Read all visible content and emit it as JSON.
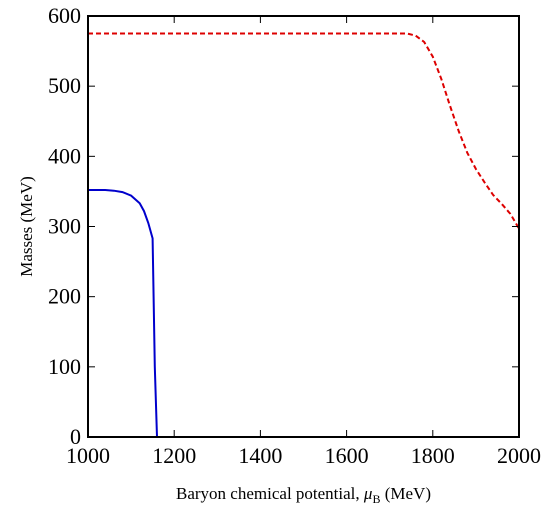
{
  "chart_data": {
    "type": "line",
    "title": "",
    "xlabel_main": "Baryon chemical potential, ",
    "xlabel_symbol": "μ",
    "xlabel_subscript": "B",
    "xlabel_unit": " (MeV)",
    "ylabel": "Masses (MeV)",
    "xlim": [
      1000,
      2000
    ],
    "ylim": [
      0,
      600
    ],
    "xticks": [
      1000,
      1200,
      1400,
      1600,
      1800,
      2000
    ],
    "yticks": [
      0,
      100,
      200,
      300,
      400,
      500,
      600
    ],
    "grid": false,
    "legend": "none",
    "series": [
      {
        "style": "solid",
        "color": "#0000cc",
        "x": [
          1000,
          1020,
          1040,
          1060,
          1080,
          1100,
          1120,
          1130,
          1140,
          1150,
          1155,
          1160,
          1200,
          1400,
          1600,
          1800,
          2000
        ],
        "y": [
          352,
          352,
          352,
          351,
          349,
          344,
          333,
          322,
          305,
          283,
          100,
          0,
          0,
          0,
          0,
          0,
          0
        ]
      },
      {
        "style": "dashed",
        "color": "#dd0000",
        "x": [
          1000,
          1200,
          1400,
          1600,
          1700,
          1740,
          1760,
          1780,
          1800,
          1820,
          1840,
          1860,
          1880,
          1900,
          1920,
          1940,
          1960,
          1980,
          2000
        ],
        "y": [
          575,
          575,
          575,
          575,
          575,
          575,
          572,
          563,
          542,
          510,
          472,
          436,
          405,
          382,
          363,
          345,
          332,
          318,
          297
        ]
      }
    ]
  }
}
